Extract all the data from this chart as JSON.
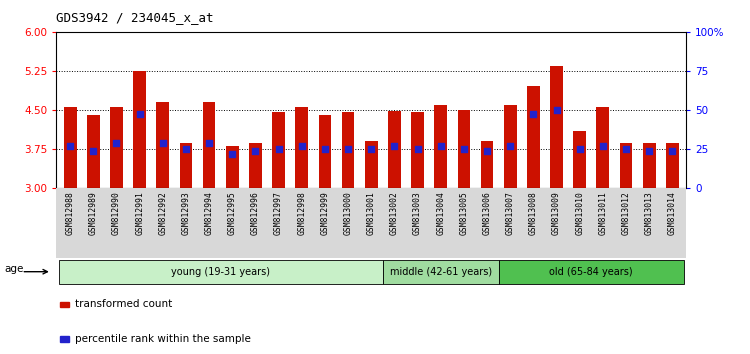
{
  "title": "GDS3942 / 234045_x_at",
  "samples": [
    "GSM812988",
    "GSM812989",
    "GSM812990",
    "GSM812991",
    "GSM812992",
    "GSM812993",
    "GSM812994",
    "GSM812995",
    "GSM812996",
    "GSM812997",
    "GSM812998",
    "GSM812999",
    "GSM813000",
    "GSM813001",
    "GSM813002",
    "GSM813003",
    "GSM813004",
    "GSM813005",
    "GSM813006",
    "GSM813007",
    "GSM813008",
    "GSM813009",
    "GSM813010",
    "GSM813011",
    "GSM813012",
    "GSM813013",
    "GSM813014"
  ],
  "bar_values": [
    4.55,
    4.4,
    4.55,
    5.25,
    4.65,
    3.85,
    4.65,
    3.8,
    3.85,
    4.45,
    4.55,
    4.4,
    4.45,
    3.9,
    4.47,
    4.45,
    4.6,
    4.5,
    3.9,
    4.6,
    4.95,
    5.35,
    4.1,
    4.55,
    3.85,
    3.85,
    3.85
  ],
  "percentile_values": [
    3.8,
    3.7,
    3.85,
    4.42,
    3.85,
    3.75,
    3.85,
    3.65,
    3.7,
    3.75,
    3.8,
    3.75,
    3.75,
    3.75,
    3.8,
    3.75,
    3.8,
    3.75,
    3.7,
    3.8,
    4.42,
    4.5,
    3.75,
    3.8,
    3.75,
    3.7,
    3.7
  ],
  "groups": [
    {
      "label": "young (19-31 years)",
      "start": 0,
      "end": 14,
      "color": "#c8f0c8"
    },
    {
      "label": "middle (42-61 years)",
      "start": 14,
      "end": 19,
      "color": "#a0dca0"
    },
    {
      "label": "old (65-84 years)",
      "start": 19,
      "end": 27,
      "color": "#50c050"
    }
  ],
  "ylim_left": [
    3.0,
    6.0
  ],
  "ylim_right": [
    0,
    100
  ],
  "yticks_left": [
    3.0,
    3.75,
    4.5,
    5.25,
    6.0
  ],
  "yticks_right": [
    0,
    25,
    50,
    75,
    100
  ],
  "ytick_labels_right": [
    "0",
    "25",
    "50",
    "75",
    "100%"
  ],
  "bar_color": "#cc1100",
  "dot_color": "#2222cc",
  "xticklabel_bg": "#d8d8d8",
  "legend": [
    {
      "label": "transformed count",
      "color": "#cc1100"
    },
    {
      "label": "percentile rank within the sample",
      "color": "#2222cc"
    }
  ]
}
